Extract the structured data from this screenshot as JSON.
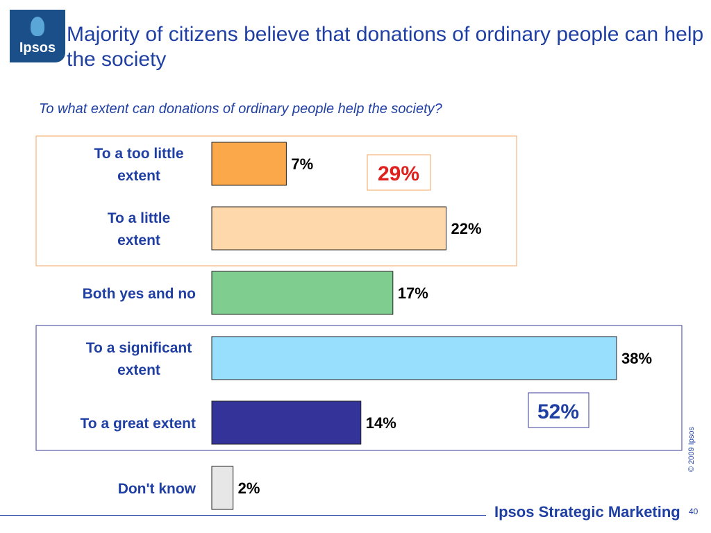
{
  "header": {
    "logo_text": "Ipsos",
    "title": "Majority of citizens believe that  donations of ordinary people can help the society"
  },
  "colors": {
    "title": "#1f3fa3",
    "label": "#1f3fa3",
    "highlight_negative": "#e0201c",
    "highlight_positive": "#1f3fa3",
    "negative_box_border": "#f4a460",
    "positive_box_border": "#3b3b9a"
  },
  "chart_data": {
    "type": "bar",
    "orientation": "horizontal",
    "subtitle": "To what extent can donations of ordinary people help the society?",
    "categories": [
      "To a too little extent",
      "To a little extent",
      "Both yes and no",
      "To a significant extent",
      "To a great extent",
      "Don't know"
    ],
    "values": [
      7,
      22,
      17,
      38,
      14,
      2
    ],
    "value_labels": [
      "7%",
      "22%",
      "17%",
      "38%",
      "14%",
      "2%"
    ],
    "bar_colors": [
      "#fba84a",
      "#fed8aa",
      "#7fce8f",
      "#98dffe",
      "#33339a",
      "#e7e7e7"
    ],
    "groups": [
      {
        "label": "29%",
        "categories": [
          "To a too little extent",
          "To a little extent"
        ],
        "color": "#e0201c"
      },
      {
        "label": "52%",
        "categories": [
          "To a significant extent",
          "To a great extent"
        ],
        "color": "#1f3fa3"
      }
    ],
    "xlim": [
      0,
      38
    ],
    "grid": false,
    "legend": "none"
  },
  "footer": {
    "copyright": "© 2009 Ipsos",
    "brand": "Ipsos  Strategic Marketing",
    "page_number": "40"
  }
}
